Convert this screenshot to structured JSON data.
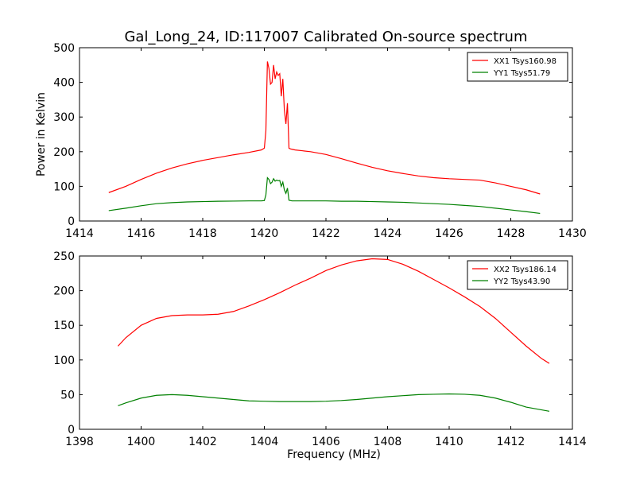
{
  "title": "Gal_Long_24, ID:117007 Calibrated On-source spectrum",
  "chart_data": [
    {
      "type": "line",
      "ylabel": "Power in Kelvin",
      "xlabel": "",
      "xlim": [
        1414,
        1430
      ],
      "ylim": [
        0,
        500
      ],
      "xticks": [
        "1414",
        "1416",
        "1418",
        "1420",
        "1422",
        "1424",
        "1426",
        "1428",
        "1430"
      ],
      "yticks": [
        "0",
        "100",
        "200",
        "300",
        "400",
        "500"
      ],
      "legend_position": "top-right",
      "series": [
        {
          "name": "XX1 Tsys160.98",
          "color": "#ff0000",
          "x": [
            1414.95,
            1415.5,
            1416.0,
            1416.5,
            1417.0,
            1417.5,
            1418.0,
            1418.5,
            1419.0,
            1419.5,
            1419.9,
            1420.0,
            1420.05,
            1420.1,
            1420.15,
            1420.2,
            1420.25,
            1420.3,
            1420.35,
            1420.4,
            1420.45,
            1420.5,
            1420.55,
            1420.6,
            1420.65,
            1420.7,
            1420.75,
            1420.8,
            1420.85,
            1420.9,
            1421.0,
            1421.5,
            1422.0,
            1422.5,
            1423.0,
            1423.5,
            1424.0,
            1424.5,
            1425.0,
            1425.5,
            1426.0,
            1426.5,
            1427.0,
            1427.5,
            1428.0,
            1428.5,
            1428.95
          ],
          "values": [
            82,
            100,
            120,
            138,
            153,
            165,
            175,
            183,
            191,
            198,
            205,
            210,
            260,
            460,
            440,
            395,
            400,
            450,
            410,
            430,
            420,
            425,
            360,
            410,
            320,
            280,
            340,
            210,
            208,
            207,
            205,
            200,
            192,
            180,
            167,
            155,
            145,
            137,
            130,
            125,
            122,
            120,
            118,
            110,
            100,
            90,
            78
          ]
        },
        {
          "name": "YY1 Tsys51.79",
          "color": "#008000",
          "x": [
            1414.95,
            1415.5,
            1416.0,
            1416.5,
            1417.0,
            1417.5,
            1418.0,
            1418.5,
            1419.0,
            1419.5,
            1419.9,
            1420.0,
            1420.05,
            1420.1,
            1420.15,
            1420.2,
            1420.25,
            1420.3,
            1420.35,
            1420.4,
            1420.45,
            1420.5,
            1420.55,
            1420.6,
            1420.65,
            1420.7,
            1420.75,
            1420.8,
            1420.85,
            1420.9,
            1421.0,
            1421.5,
            1422.0,
            1422.5,
            1423.0,
            1423.5,
            1424.0,
            1424.5,
            1425.0,
            1425.5,
            1426.0,
            1426.5,
            1427.0,
            1427.5,
            1428.0,
            1428.5,
            1428.95
          ],
          "values": [
            30,
            37,
            44,
            50,
            53,
            55,
            56,
            57,
            57.5,
            58,
            58,
            59,
            75,
            125,
            120,
            108,
            112,
            122,
            115,
            118,
            116,
            117,
            100,
            112,
            90,
            80,
            95,
            60,
            59,
            58,
            58,
            58,
            58,
            57,
            57,
            56,
            55,
            54,
            52,
            50,
            48,
            45,
            42,
            37,
            32,
            27,
            22
          ]
        }
      ]
    },
    {
      "type": "line",
      "ylabel": "",
      "xlabel": "Frequency (MHz)",
      "xlim": [
        1398,
        1414
      ],
      "ylim": [
        0,
        250
      ],
      "xticks": [
        "1398",
        "1400",
        "1402",
        "1404",
        "1406",
        "1408",
        "1410",
        "1412",
        "1414"
      ],
      "yticks": [
        "0",
        "50",
        "100",
        "150",
        "200",
        "250"
      ],
      "legend_position": "top-right",
      "series": [
        {
          "name": "XX2 Tsys186.14",
          "color": "#ff0000",
          "x": [
            1399.25,
            1399.5,
            1400.0,
            1400.5,
            1401.0,
            1401.5,
            1402.0,
            1402.5,
            1403.0,
            1403.5,
            1404.0,
            1404.5,
            1405.0,
            1405.5,
            1406.0,
            1406.5,
            1407.0,
            1407.5,
            1408.0,
            1408.5,
            1409.0,
            1409.5,
            1410.0,
            1410.5,
            1411.0,
            1411.5,
            1412.0,
            1412.5,
            1413.0,
            1413.25
          ],
          "values": [
            120,
            132,
            150,
            160,
            164,
            165,
            165,
            166,
            170,
            178,
            187,
            197,
            208,
            218,
            229,
            237,
            243,
            246,
            245,
            238,
            228,
            216,
            204,
            191,
            177,
            160,
            140,
            120,
            102,
            95
          ]
        },
        {
          "name": "YY2 Tsys43.90",
          "color": "#008000",
          "x": [
            1399.25,
            1399.5,
            1400.0,
            1400.5,
            1401.0,
            1401.5,
            1402.0,
            1402.5,
            1403.0,
            1403.5,
            1404.0,
            1404.5,
            1405.0,
            1405.5,
            1406.0,
            1406.5,
            1407.0,
            1407.5,
            1408.0,
            1408.5,
            1409.0,
            1409.5,
            1410.0,
            1410.5,
            1411.0,
            1411.5,
            1412.0,
            1412.5,
            1413.0,
            1413.25
          ],
          "values": [
            34,
            38,
            45,
            49,
            50,
            49,
            47,
            45,
            43,
            41,
            40.5,
            40,
            40,
            40,
            40.5,
            41.5,
            43,
            45,
            47,
            48.5,
            50,
            50.5,
            51,
            50.5,
            49,
            45,
            39,
            32,
            28,
            26
          ]
        }
      ]
    }
  ]
}
